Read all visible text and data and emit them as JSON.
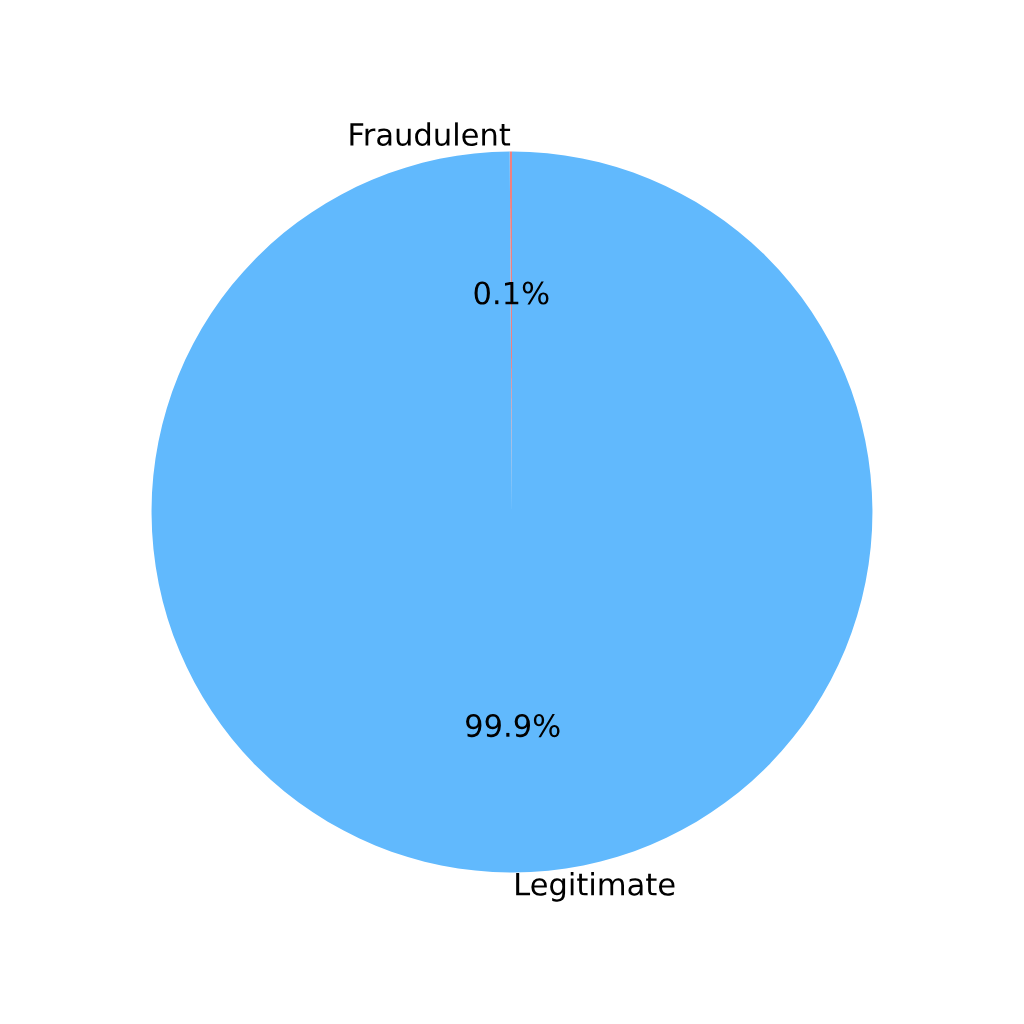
{
  "chart_data": {
    "type": "pie",
    "categories": [
      "Fraudulent",
      "Legitimate"
    ],
    "values": [
      0.1,
      99.9
    ],
    "colors": [
      "#f08080",
      "#61b9fd"
    ],
    "value_labels": [
      "0.1%",
      "99.9%"
    ]
  }
}
